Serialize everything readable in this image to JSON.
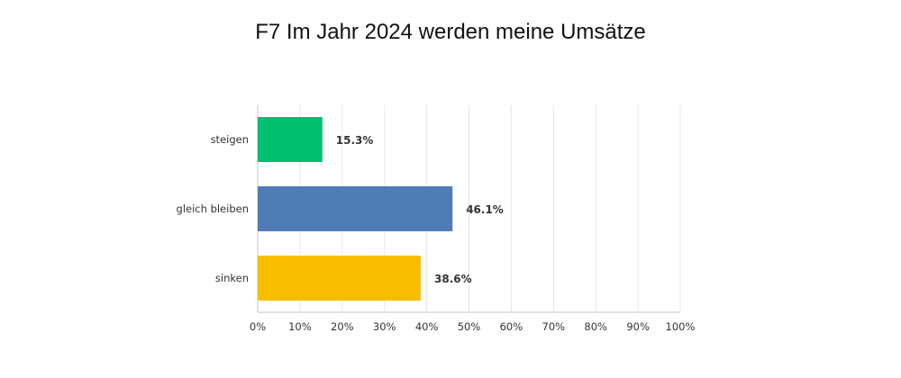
{
  "chart_data": {
    "type": "bar",
    "orientation": "horizontal",
    "title": "F7 Im Jahr 2024 werden meine Umsätze",
    "categories": [
      "steigen",
      "gleich bleiben",
      "sinken"
    ],
    "values": [
      15.3,
      46.1,
      38.6
    ],
    "value_labels": [
      "15.3%",
      "46.1%",
      "38.6%"
    ],
    "colors": [
      "#00bf6f",
      "#507cb6",
      "#f9be00"
    ],
    "xlim": [
      0,
      100
    ],
    "x_ticks": [
      "0%",
      "10%",
      "20%",
      "30%",
      "40%",
      "50%",
      "60%",
      "70%",
      "80%",
      "90%",
      "100%"
    ],
    "grid": true,
    "xlabel": "",
    "ylabel": ""
  }
}
